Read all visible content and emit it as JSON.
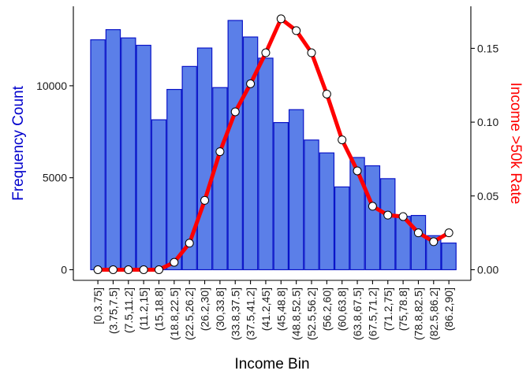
{
  "chart_data": {
    "type": "bar",
    "categories": [
      "[0,3.75]",
      "(3.75,7.5]",
      "(7.5,11.2]",
      "(11.2,15]",
      "(15,18.8]",
      "(18.8,22.5]",
      "(22.5,26.2]",
      "(26.2,30]",
      "(30,33.8]",
      "(33.8,37.5]",
      "(37.5,41.2]",
      "(41.2,45]",
      "(45,48.8]",
      "(48.8,52.5]",
      "(52.5,56.2]",
      "(56.2,60]",
      "(60,63.8]",
      "(63.8,67.5]",
      "(67.5,71.2]",
      "(71.2,75]",
      "(75,78.8]",
      "(78.8,82.5]",
      "(82.5,86.2]",
      "(86.2,90]"
    ],
    "series": [
      {
        "values": [
          12500,
          13050,
          12600,
          12200,
          8150,
          9800,
          11050,
          12050,
          9900,
          13550,
          12650,
          11500,
          8000,
          8700,
          7050,
          6350,
          4500,
          6100,
          5650,
          4950,
          2900,
          2950,
          1850,
          1450
        ],
        "axis": "left",
        "kind": "bar",
        "color": "#5b7fe8",
        "stroke": "#0a14c8"
      },
      {
        "values": [
          0.0,
          0.0,
          0.0,
          0.0,
          0.0,
          0.005,
          0.018,
          0.047,
          0.08,
          0.107,
          0.126,
          0.147,
          0.17,
          0.162,
          0.147,
          0.119,
          0.088,
          0.067,
          0.043,
          0.037,
          0.036,
          0.025,
          0.019,
          0.025
        ],
        "axis": "right",
        "kind": "line",
        "color": "#ff0000"
      }
    ],
    "xlabel": "Income Bin",
    "ylabel": "Frequency Count",
    "y2label": "Income >50k Rate",
    "ylim": [
      0,
      14000
    ],
    "y2lim": [
      0,
      0.175
    ],
    "yticks": [
      0,
      5000,
      10000
    ],
    "y2ticks": [
      "0.00",
      "0.05",
      "0.10",
      "0.15"
    ],
    "ylabel_color": "#0000cc",
    "y2label_color": "#ff0000",
    "grid": false,
    "legend": "none"
  }
}
